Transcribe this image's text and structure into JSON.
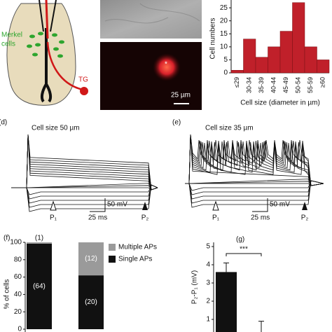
{
  "panel_a": {
    "merkel_label": [
      "Merkel",
      "cells"
    ],
    "tg_label": "TG"
  },
  "panel_b": {
    "marker": "*",
    "scale_bar": "25 µm"
  },
  "panel_d": {
    "label": "(d)",
    "title": "Cell size 50 µm",
    "voltage_scale": "50 mV",
    "time_scale": "25 ms",
    "p1": "P₁",
    "p2": "P₂"
  },
  "panel_e": {
    "label": "(e)",
    "title": "Cell size 35 µm",
    "voltage_scale": "50 mV",
    "time_scale": "25 ms",
    "p1": "P₁",
    "p2": "P₂"
  },
  "chart_data": [
    {
      "type": "bar",
      "ylabel": "Cell numbers",
      "xlabel": "Cell size (diameter in µm)",
      "categories": [
        "≤29",
        "30-34",
        "35-39",
        "40-44",
        "45-49",
        "50-54",
        "55-59",
        "≥60"
      ],
      "values": [
        1,
        13,
        6,
        10,
        16,
        27,
        10,
        5
      ],
      "color": "#c0202a",
      "ylim": [
        0,
        28
      ],
      "yticks": [
        0,
        5,
        10,
        15,
        20,
        25
      ]
    },
    {
      "type": "stacked_bar",
      "panel": "(f)",
      "ylabel": "% of cells",
      "categories": [
        null,
        null
      ],
      "series": [
        {
          "name": "Single APs",
          "color": "#111111",
          "values": [
            98.5,
            62
          ],
          "count_labels": [
            "(64)",
            "(20)"
          ]
        },
        {
          "name": "Multiple APs",
          "color": "#9a9a9a",
          "values": [
            1.5,
            38
          ],
          "count_labels": [
            "(1)",
            "(12)"
          ]
        }
      ],
      "ylim": [
        0,
        100
      ],
      "yticks": [
        0,
        20,
        40,
        60,
        80,
        100
      ]
    },
    {
      "type": "error_bar",
      "panel": "(g)",
      "ylabel": "P₂-P₁ (mV)",
      "categories": [
        null,
        null
      ],
      "values": [
        3.6,
        0
      ],
      "errors": [
        0.5,
        0.9
      ],
      "color": "#111111",
      "significance": "***",
      "ylim": [
        0,
        5
      ],
      "yticks": [
        1,
        2,
        3,
        4,
        5
      ]
    }
  ]
}
